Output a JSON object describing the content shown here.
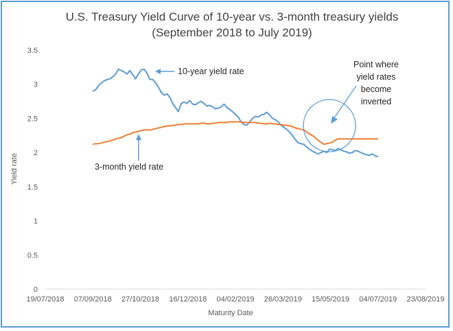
{
  "chart_data": {
    "type": "line",
    "title": "U.S. Treasury Yield Curve of 10-year vs. 3-month treasury yields",
    "subtitle": "(September 2018 to July 2019)",
    "xlabel": "Maturity Date",
    "ylabel": "Yield rate",
    "ylim": [
      0,
      3.5
    ],
    "yticks": [
      "0",
      "0.5",
      "1",
      "1.5",
      "2",
      "2.5",
      "3",
      "3.5"
    ],
    "xticks": [
      "19/07/2018",
      "07/09/2018",
      "27/10/2018",
      "16/12/2018",
      "04/02/2019",
      "26/03/2019",
      "15/05/2019",
      "04/07/2019",
      "23/08/2019"
    ],
    "xlim_days": [
      0,
      400
    ],
    "series": [
      {
        "name": "10-year yield rate",
        "color": "#5b9bd5",
        "x": [
          50,
          53,
          56,
          59,
          62,
          65,
          68,
          71,
          74,
          77,
          80,
          83,
          86,
          89,
          92,
          95,
          98,
          101,
          104,
          107,
          110,
          113,
          116,
          119,
          122,
          125,
          128,
          131,
          134,
          137,
          140,
          143,
          146,
          149,
          152,
          155,
          158,
          161,
          164,
          167,
          170,
          173,
          176,
          179,
          182,
          185,
          188,
          191,
          194,
          197,
          200,
          203,
          206,
          209,
          212,
          215,
          218,
          221,
          224,
          227,
          230,
          233,
          236,
          239,
          242,
          245,
          248,
          251,
          254,
          257,
          260,
          263,
          266,
          269,
          272,
          275,
          278,
          281,
          284,
          287,
          290,
          293,
          296,
          299,
          302,
          305,
          308,
          311,
          314,
          317,
          320,
          323,
          326,
          329,
          332,
          335,
          338,
          341,
          344,
          347,
          350
        ],
        "values": [
          2.9,
          2.92,
          2.98,
          3.02,
          3.05,
          3.07,
          3.08,
          3.11,
          3.15,
          3.22,
          3.2,
          3.18,
          3.15,
          3.2,
          3.14,
          3.08,
          3.15,
          3.21,
          3.22,
          3.16,
          3.07,
          3.07,
          3.02,
          2.96,
          2.88,
          2.84,
          2.86,
          2.81,
          2.72,
          2.66,
          2.6,
          2.72,
          2.74,
          2.72,
          2.76,
          2.71,
          2.7,
          2.73,
          2.75,
          2.72,
          2.68,
          2.69,
          2.67,
          2.64,
          2.65,
          2.67,
          2.71,
          2.66,
          2.63,
          2.6,
          2.56,
          2.52,
          2.45,
          2.41,
          2.4,
          2.45,
          2.5,
          2.53,
          2.52,
          2.55,
          2.56,
          2.59,
          2.55,
          2.5,
          2.48,
          2.45,
          2.4,
          2.37,
          2.34,
          2.3,
          2.25,
          2.19,
          2.14,
          2.13,
          2.12,
          2.08,
          2.05,
          2.02,
          2.0,
          1.98,
          2.0,
          2.02,
          2.0,
          2.05,
          2.04,
          2.03,
          2.06,
          2.04,
          2.02,
          2.01,
          1.99,
          2.0,
          2.03,
          2.02,
          2.0,
          1.98,
          1.97,
          1.96,
          1.98,
          1.95,
          1.94
        ]
      },
      {
        "name": "3-month yield rate",
        "color": "#ed7d31",
        "x": [
          50,
          53,
          56,
          59,
          62,
          65,
          68,
          71,
          74,
          77,
          80,
          83,
          86,
          89,
          92,
          95,
          98,
          101,
          104,
          107,
          110,
          113,
          116,
          119,
          122,
          125,
          128,
          131,
          134,
          137,
          140,
          143,
          146,
          149,
          152,
          155,
          158,
          161,
          164,
          167,
          170,
          173,
          176,
          179,
          182,
          185,
          188,
          191,
          194,
          197,
          200,
          203,
          206,
          209,
          212,
          215,
          218,
          221,
          224,
          227,
          230,
          233,
          236,
          239,
          242,
          245,
          248,
          251,
          254,
          257,
          260,
          263,
          266,
          269,
          272,
          275,
          278,
          281,
          284,
          287,
          290,
          293,
          296,
          299,
          302,
          305,
          308,
          311,
          314,
          317,
          320,
          323,
          326,
          329,
          332,
          335,
          338,
          341,
          344,
          347,
          350
        ],
        "values": [
          2.12,
          2.13,
          2.13,
          2.14,
          2.15,
          2.16,
          2.17,
          2.18,
          2.2,
          2.21,
          2.22,
          2.24,
          2.26,
          2.27,
          2.29,
          2.3,
          2.31,
          2.32,
          2.33,
          2.33,
          2.33,
          2.34,
          2.35,
          2.36,
          2.37,
          2.38,
          2.39,
          2.39,
          2.4,
          2.4,
          2.41,
          2.41,
          2.42,
          2.42,
          2.42,
          2.42,
          2.42,
          2.42,
          2.43,
          2.43,
          2.42,
          2.42,
          2.43,
          2.43,
          2.44,
          2.44,
          2.44,
          2.44,
          2.45,
          2.45,
          2.45,
          2.45,
          2.45,
          2.44,
          2.44,
          2.44,
          2.44,
          2.44,
          2.43,
          2.43,
          2.42,
          2.42,
          2.43,
          2.42,
          2.42,
          2.41,
          2.41,
          2.4,
          2.4,
          2.39,
          2.38,
          2.36,
          2.35,
          2.34,
          2.33,
          2.3,
          2.27,
          2.25,
          2.22,
          2.18,
          2.15,
          2.12,
          2.13,
          2.14,
          2.15,
          2.18,
          2.2,
          2.2,
          2.2,
          2.2,
          2.2,
          2.2,
          2.2,
          2.2,
          2.2,
          2.2,
          2.2,
          2.2,
          2.2,
          2.2,
          2.2
        ]
      }
    ],
    "annotations": {
      "ten_year_label": "10-year yield rate",
      "three_month_label": "3-month yield rate",
      "inversion_lines": [
        "Point where",
        "yield rates",
        "become",
        "inverted"
      ]
    }
  }
}
